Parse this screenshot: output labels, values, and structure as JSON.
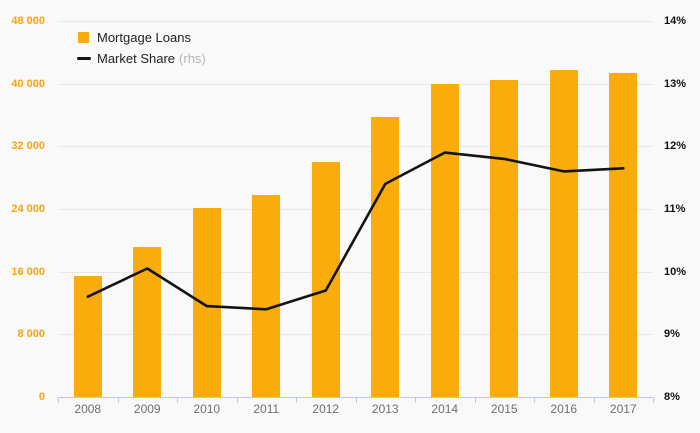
{
  "chart_data": {
    "type": "bar+line combo",
    "categories": [
      "2008",
      "2009",
      "2010",
      "2011",
      "2012",
      "2013",
      "2014",
      "2015",
      "2016",
      "2017"
    ],
    "series": [
      {
        "name": "Mortgage Loans",
        "type": "bar",
        "axis": "left",
        "values": [
          15500,
          19100,
          24100,
          25800,
          30000,
          35700,
          40000,
          40500,
          41700,
          41300
        ]
      },
      {
        "name": "Market Share",
        "note": "(rhs)",
        "type": "line",
        "axis": "right",
        "values": [
          9.6,
          10.05,
          9.45,
          9.4,
          9.7,
          11.4,
          11.9,
          11.8,
          11.6,
          11.65
        ]
      }
    ],
    "left_axis": {
      "min": 0,
      "max": 48000,
      "step": 8000,
      "labels": [
        "0",
        "8 000",
        "16 000",
        "24 000",
        "32 000",
        "40 000",
        "48 000"
      ]
    },
    "right_axis": {
      "min": 8,
      "max": 14,
      "step": 1,
      "labels": [
        "8%",
        "9%",
        "10%",
        "11%",
        "12%",
        "13%",
        "14%"
      ]
    },
    "grid": true,
    "legend_position": "top-left"
  },
  "legend": {
    "items": [
      {
        "label": "Mortgage Loans",
        "note": ""
      },
      {
        "label": "Market Share",
        "note": "(rhs)"
      }
    ]
  },
  "colors": {
    "bar": "#F9AC0B",
    "line": "#141414",
    "left_axis_text": "#F9A40B",
    "right_axis_text": "#111111",
    "x_axis_text": "#6E6E6E",
    "grid": "#E8E8E8",
    "axis_line": "#BFC9E4",
    "background": "#F9F9F9",
    "legend_text": "#222222",
    "legend_note": "#B5B5B5"
  }
}
